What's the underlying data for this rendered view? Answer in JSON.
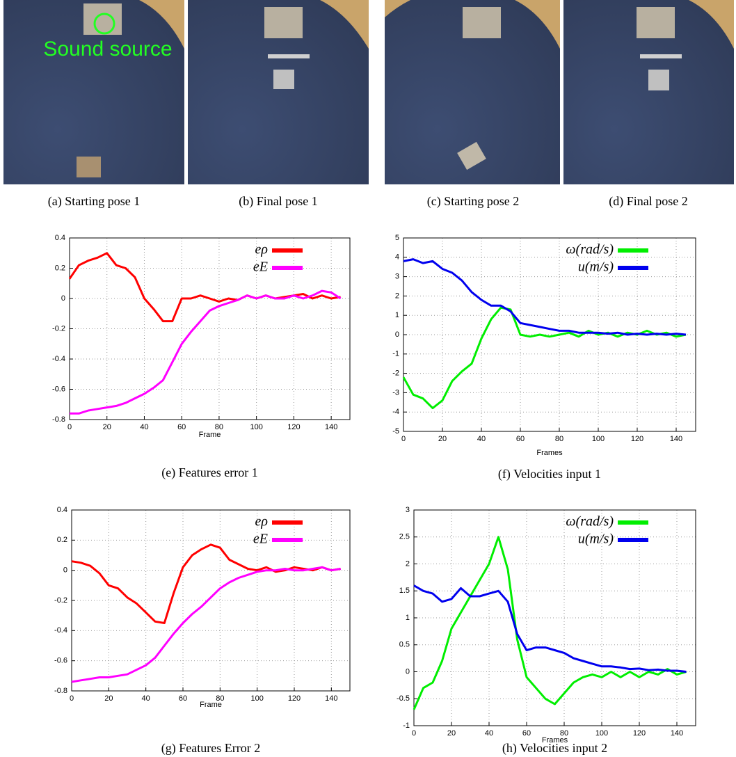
{
  "photos": [
    {
      "caption": "(a) Starting pose 1",
      "annotation": "Sound source"
    },
    {
      "caption": "(b) Final pose 1"
    },
    {
      "caption": "(c) Starting pose 2"
    },
    {
      "caption": "(d) Final pose 2"
    }
  ],
  "chart_data": [
    {
      "type": "line",
      "caption": "(e) Features error 1",
      "x_label": "Frame",
      "x": [
        0,
        5,
        10,
        15,
        20,
        25,
        30,
        35,
        40,
        45,
        50,
        55,
        60,
        65,
        70,
        75,
        80,
        85,
        90,
        95,
        100,
        105,
        110,
        115,
        120,
        125,
        130,
        135,
        140,
        145
      ],
      "xlim": [
        0,
        150
      ],
      "xticks": [
        0,
        20,
        40,
        60,
        80,
        100,
        120,
        140
      ],
      "ylim": [
        -0.8,
        0.4
      ],
      "yticks": [
        -0.8,
        -0.6,
        -0.4,
        -0.2,
        0,
        0.2,
        0.4
      ],
      "grid": true,
      "legend": "upper right",
      "series": [
        {
          "name": "eρ",
          "color": "#ff0000",
          "values": [
            0.13,
            0.22,
            0.25,
            0.27,
            0.3,
            0.22,
            0.2,
            0.14,
            0.0,
            -0.07,
            -0.15,
            -0.15,
            0.0,
            0.0,
            0.02,
            0.0,
            -0.02,
            0.0,
            -0.01,
            0.02,
            0.0,
            0.02,
            0.0,
            0.01,
            0.02,
            0.03,
            0.0,
            0.02,
            0.0,
            0.01
          ]
        },
        {
          "name": "eE",
          "color": "#ff00ff",
          "values": [
            -0.76,
            -0.76,
            -0.74,
            -0.73,
            -0.72,
            -0.71,
            -0.69,
            -0.66,
            -0.63,
            -0.59,
            -0.54,
            -0.42,
            -0.3,
            -0.22,
            -0.15,
            -0.08,
            -0.05,
            -0.03,
            -0.01,
            0.02,
            0.0,
            0.02,
            0.0,
            0.0,
            0.02,
            0.0,
            0.02,
            0.05,
            0.04,
            0.0
          ]
        }
      ]
    },
    {
      "type": "line",
      "caption": "(f) Velocities input 1",
      "x_label": "Frames",
      "x": [
        0,
        5,
        10,
        15,
        20,
        25,
        30,
        35,
        40,
        45,
        50,
        55,
        60,
        65,
        70,
        75,
        80,
        85,
        90,
        95,
        100,
        105,
        110,
        115,
        120,
        125,
        130,
        135,
        140,
        145
      ],
      "xlim": [
        0,
        150
      ],
      "xticks": [
        0,
        20,
        40,
        60,
        80,
        100,
        120,
        140
      ],
      "ylim": [
        -5,
        5
      ],
      "yticks": [
        -5,
        -4,
        -3,
        -2,
        -1,
        0,
        1,
        2,
        3,
        4,
        5
      ],
      "grid": true,
      "legend": "upper right",
      "series": [
        {
          "name": "ω(rad/s)",
          "color": "#00ee00",
          "values": [
            -2.2,
            -3.1,
            -3.3,
            -3.8,
            -3.4,
            -2.4,
            -1.9,
            -1.5,
            -0.2,
            0.8,
            1.4,
            1.3,
            0.0,
            -0.1,
            0.0,
            -0.1,
            0.0,
            0.1,
            -0.1,
            0.2,
            0.0,
            0.1,
            -0.1,
            0.1,
            0.0,
            0.2,
            0.0,
            0.1,
            -0.1,
            0.0
          ]
        },
        {
          "name": "u(m/s)",
          "color": "#0000ee",
          "values": [
            3.8,
            3.9,
            3.7,
            3.8,
            3.4,
            3.2,
            2.8,
            2.2,
            1.8,
            1.5,
            1.5,
            1.2,
            0.6,
            0.5,
            0.4,
            0.3,
            0.2,
            0.2,
            0.1,
            0.1,
            0.1,
            0.05,
            0.1,
            0.0,
            0.05,
            0.0,
            0.05,
            0.0,
            0.05,
            0.0
          ]
        }
      ]
    },
    {
      "type": "line",
      "caption": "(g) Features Error 2",
      "x_label": "Frame",
      "x": [
        0,
        5,
        10,
        15,
        20,
        25,
        30,
        35,
        40,
        45,
        50,
        55,
        60,
        65,
        70,
        75,
        80,
        85,
        90,
        95,
        100,
        105,
        110,
        115,
        120,
        125,
        130,
        135,
        140,
        145
      ],
      "xlim": [
        0,
        150
      ],
      "xticks": [
        0,
        20,
        40,
        60,
        80,
        100,
        120,
        140
      ],
      "ylim": [
        -0.8,
        0.4
      ],
      "yticks": [
        -0.8,
        -0.6,
        -0.4,
        -0.2,
        0,
        0.2,
        0.4
      ],
      "grid": true,
      "legend": "upper right",
      "series": [
        {
          "name": "eρ",
          "color": "#ff0000",
          "values": [
            0.06,
            0.05,
            0.03,
            -0.02,
            -0.1,
            -0.12,
            -0.18,
            -0.22,
            -0.28,
            -0.34,
            -0.35,
            -0.15,
            0.02,
            0.1,
            0.14,
            0.17,
            0.15,
            0.07,
            0.04,
            0.01,
            0.0,
            0.02,
            -0.01,
            0.0,
            0.02,
            0.01,
            0.0,
            0.02,
            0.0,
            0.01
          ]
        },
        {
          "name": "eE",
          "color": "#ff00ff",
          "values": [
            -0.74,
            -0.73,
            -0.72,
            -0.71,
            -0.71,
            -0.7,
            -0.69,
            -0.66,
            -0.63,
            -0.58,
            -0.5,
            -0.42,
            -0.35,
            -0.29,
            -0.24,
            -0.18,
            -0.12,
            -0.08,
            -0.05,
            -0.03,
            -0.01,
            0.0,
            0.0,
            0.01,
            0.0,
            0.0,
            0.01,
            0.02,
            0.0,
            0.01
          ]
        }
      ]
    },
    {
      "type": "line",
      "caption": "(h) Velocities input 2",
      "x_label": "Frames",
      "x": [
        0,
        5,
        10,
        15,
        20,
        25,
        30,
        35,
        40,
        45,
        50,
        55,
        60,
        65,
        70,
        75,
        80,
        85,
        90,
        95,
        100,
        105,
        110,
        115,
        120,
        125,
        130,
        135,
        140,
        145
      ],
      "xlim": [
        0,
        150
      ],
      "xticks": [
        0,
        20,
        40,
        60,
        80,
        100,
        120,
        140
      ],
      "ylim": [
        -1,
        3
      ],
      "yticks": [
        -1,
        -0.5,
        0,
        0.5,
        1,
        1.5,
        2,
        2.5,
        3
      ],
      "grid": true,
      "legend": "upper right",
      "series": [
        {
          "name": "ω(rad/s)",
          "color": "#00ee00",
          "values": [
            -0.7,
            -0.3,
            -0.2,
            0.2,
            0.8,
            1.1,
            1.4,
            1.7,
            2.0,
            2.5,
            1.9,
            0.6,
            -0.1,
            -0.3,
            -0.5,
            -0.6,
            -0.4,
            -0.2,
            -0.1,
            -0.05,
            -0.1,
            0.0,
            -0.1,
            0.0,
            -0.1,
            0.0,
            -0.05,
            0.05,
            -0.05,
            0.0
          ]
        },
        {
          "name": "u(m/s)",
          "color": "#0000ee",
          "values": [
            1.6,
            1.5,
            1.45,
            1.3,
            1.35,
            1.55,
            1.4,
            1.4,
            1.45,
            1.5,
            1.3,
            0.7,
            0.4,
            0.45,
            0.45,
            0.4,
            0.35,
            0.25,
            0.2,
            0.15,
            0.1,
            0.1,
            0.08,
            0.05,
            0.06,
            0.03,
            0.04,
            0.02,
            0.02,
            0.0
          ]
        }
      ]
    }
  ]
}
